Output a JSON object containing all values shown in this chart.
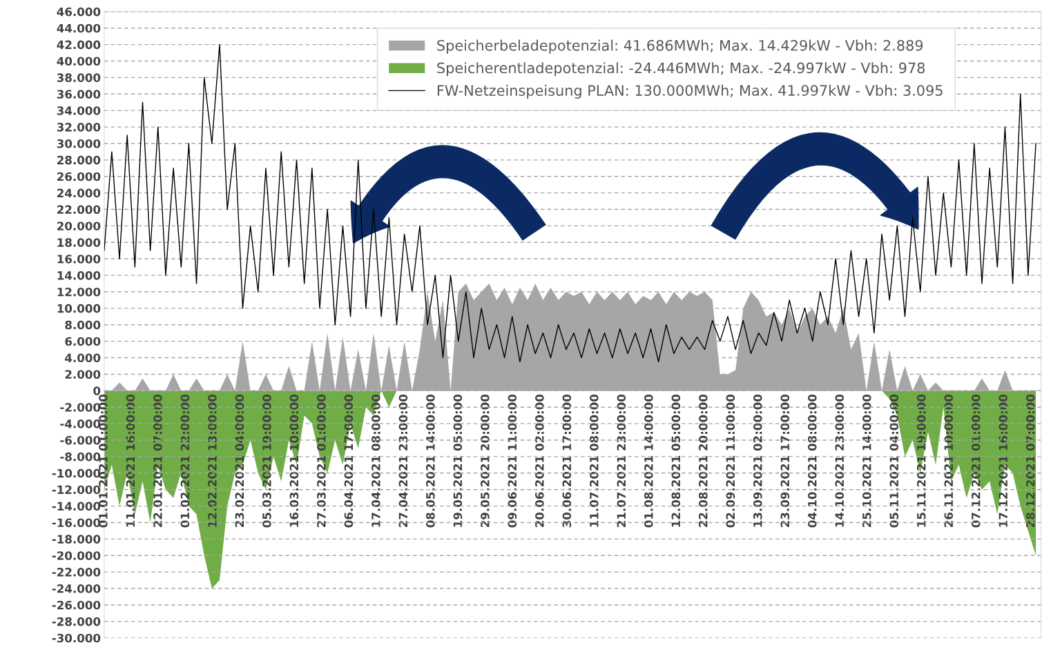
{
  "chart_data": {
    "type": "area",
    "x": [
      "2021-01-01T01:00",
      "2021-01-04",
      "2021-01-07",
      "2021-01-10",
      "2021-01-13",
      "2021-01-16",
      "2021-01-19",
      "2021-01-22",
      "2021-01-25",
      "2021-01-28",
      "2021-01-31",
      "2021-02-03",
      "2021-02-06",
      "2021-02-09",
      "2021-02-12",
      "2021-02-15",
      "2021-02-18",
      "2021-02-21",
      "2021-02-24",
      "2021-02-27",
      "2021-03-02",
      "2021-03-05",
      "2021-03-08",
      "2021-03-11",
      "2021-03-14",
      "2021-03-17",
      "2021-03-20",
      "2021-03-23",
      "2021-03-26",
      "2021-03-29",
      "2021-04-01",
      "2021-04-04",
      "2021-04-07",
      "2021-04-10",
      "2021-04-13",
      "2021-04-16",
      "2021-04-19",
      "2021-04-22",
      "2021-04-25",
      "2021-04-28",
      "2021-05-01",
      "2021-05-04",
      "2021-05-07",
      "2021-05-10",
      "2021-05-13",
      "2021-05-16",
      "2021-05-19",
      "2021-05-22",
      "2021-05-25",
      "2021-05-28",
      "2021-05-31",
      "2021-06-03",
      "2021-06-06",
      "2021-06-09",
      "2021-06-12",
      "2021-06-15",
      "2021-06-18",
      "2021-06-21",
      "2021-06-24",
      "2021-06-27",
      "2021-06-30",
      "2021-07-03",
      "2021-07-06",
      "2021-07-09",
      "2021-07-12",
      "2021-07-15",
      "2021-07-18",
      "2021-07-21",
      "2021-07-24",
      "2021-07-27",
      "2021-07-30",
      "2021-08-02",
      "2021-08-05",
      "2021-08-08",
      "2021-08-11",
      "2021-08-14",
      "2021-08-17",
      "2021-08-20",
      "2021-08-23",
      "2021-08-26",
      "2021-08-29",
      "2021-09-01",
      "2021-09-04",
      "2021-09-07",
      "2021-09-10",
      "2021-09-13",
      "2021-09-16",
      "2021-09-19",
      "2021-09-22",
      "2021-09-25",
      "2021-09-28",
      "2021-10-01",
      "2021-10-04",
      "2021-10-07",
      "2021-10-10",
      "2021-10-13",
      "2021-10-16",
      "2021-10-19",
      "2021-10-22",
      "2021-10-25",
      "2021-10-28",
      "2021-10-31",
      "2021-11-03",
      "2021-11-06",
      "2021-11-09",
      "2021-11-12",
      "2021-11-15",
      "2021-11-18",
      "2021-11-21",
      "2021-11-24",
      "2021-11-27",
      "2021-11-30",
      "2021-12-03",
      "2021-12-06",
      "2021-12-09",
      "2021-12-12",
      "2021-12-15",
      "2021-12-18",
      "2021-12-21",
      "2021-12-24",
      "2021-12-27",
      "2021-12-30"
    ],
    "series": [
      {
        "name": "Speicherbeladepotenzial: 41.686MWh; Max. 14.429kW - Vbh: 2.889",
        "color": "#a6a6a6",
        "values": [
          0,
          0,
          1000,
          0,
          0,
          1500,
          0,
          0,
          0,
          2000,
          0,
          0,
          1500,
          0,
          0,
          0,
          2000,
          0,
          6000,
          0,
          0,
          2000,
          0,
          0,
          3000,
          0,
          0,
          6000,
          0,
          7000,
          0,
          6500,
          0,
          5000,
          0,
          7000,
          0,
          5500,
          0,
          6000,
          0,
          5000,
          12000,
          6000,
          11000,
          0,
          12000,
          13000,
          11000,
          12000,
          13000,
          11000,
          12500,
          10500,
          12500,
          11000,
          13000,
          11000,
          12500,
          11000,
          12000,
          11500,
          12000,
          10500,
          12000,
          11000,
          12000,
          11000,
          12000,
          10500,
          11500,
          11000,
          12000,
          10500,
          12000,
          11000,
          12000,
          11500,
          12000,
          11000,
          2000,
          2000,
          2500,
          10000,
          12000,
          11000,
          9000,
          9500,
          8000,
          10000,
          7000,
          9000,
          10000,
          8000,
          9000,
          7000,
          10000,
          5000,
          7000,
          0,
          6000,
          0,
          5000,
          0,
          3000,
          0,
          2000,
          0,
          1000,
          0,
          0,
          0,
          0,
          0,
          1500,
          0,
          0,
          2500,
          0,
          0,
          0,
          0
        ]
      },
      {
        "name": "Speicherentladepotenzial: -24.446MWh; Max. -24.997kW - Vbh: 978",
        "color": "#70ad47",
        "values": [
          -12000,
          -9000,
          -14000,
          -10000,
          -15000,
          -11000,
          -16000,
          -9000,
          -12000,
          -13000,
          -10000,
          -14000,
          -15000,
          -20000,
          -24000,
          -23000,
          -14000,
          -10000,
          -9000,
          -6000,
          -10000,
          -12000,
          -8000,
          -11000,
          -6000,
          -9000,
          -3000,
          -4000,
          -8000,
          -10000,
          -6000,
          -9000,
          -4000,
          -7000,
          -2000,
          -3000,
          0,
          -2000,
          0,
          0,
          0,
          0,
          0,
          0,
          0,
          0,
          0,
          0,
          0,
          0,
          0,
          0,
          0,
          0,
          0,
          0,
          0,
          0,
          0,
          0,
          0,
          0,
          0,
          0,
          0,
          0,
          0,
          0,
          0,
          0,
          0,
          0,
          0,
          0,
          0,
          0,
          0,
          0,
          0,
          0,
          0,
          0,
          0,
          0,
          0,
          0,
          0,
          0,
          0,
          0,
          0,
          0,
          0,
          0,
          0,
          0,
          0,
          0,
          0,
          0,
          0,
          0,
          -1000,
          -3000,
          -8000,
          -6000,
          -10000,
          -5000,
          -9000,
          -2000,
          -11000,
          -9000,
          -13000,
          -10000,
          -12000,
          -11000,
          -15000,
          -9000,
          -10000,
          -14000,
          -17000,
          -20000
        ]
      },
      {
        "name": "FW-Netzeinspeisung PLAN: 130.000MWh; Max. 41.997kW - Vbh: 3.095",
        "type": "line",
        "color": "#000000",
        "values": [
          17000,
          29000,
          16000,
          31000,
          15000,
          35000,
          17000,
          32000,
          14000,
          27000,
          15000,
          30000,
          13000,
          38000,
          30000,
          42000,
          22000,
          30000,
          10000,
          20000,
          12000,
          27000,
          14000,
          29000,
          15000,
          28000,
          13000,
          27000,
          10000,
          22000,
          8000,
          20000,
          9000,
          28000,
          10000,
          22000,
          9000,
          21000,
          8000,
          19000,
          12000,
          20000,
          8000,
          14000,
          4000,
          14000,
          6000,
          12000,
          4000,
          10000,
          5000,
          8000,
          4000,
          9000,
          3500,
          8000,
          4500,
          7000,
          4000,
          8000,
          5000,
          7000,
          4000,
          7500,
          4500,
          7000,
          4000,
          7500,
          4500,
          7000,
          4000,
          7500,
          3500,
          8000,
          4500,
          6500,
          5000,
          6500,
          5000,
          8500,
          6000,
          9000,
          5000,
          8500,
          4500,
          7000,
          5500,
          9500,
          6000,
          11000,
          7000,
          10000,
          6000,
          12000,
          8000,
          16000,
          8000,
          17000,
          9000,
          16000,
          7000,
          19000,
          11000,
          20000,
          9000,
          21000,
          12000,
          26000,
          14000,
          24000,
          15000,
          28000,
          14000,
          30000,
          13000,
          27000,
          15000,
          32000,
          13000,
          36000,
          14000,
          30000
        ]
      }
    ],
    "xlim": [
      "2021-01-01T01:00",
      "2022-01-01T00:00"
    ],
    "xticks": [
      {
        "value": "2021-01-01T01:00",
        "label": "01.01.2021 01:00:00"
      },
      {
        "value": "2021-01-11T16:00",
        "label": "11.01.2021 16:00:00"
      },
      {
        "value": "2021-01-22T07:00",
        "label": "22.01.2021 07:00:00"
      },
      {
        "value": "2021-02-01T22:00",
        "label": "01.02.2021 22:00:00"
      },
      {
        "value": "2021-02-12T13:00",
        "label": "12.02.2021 13:00:00"
      },
      {
        "value": "2021-02-23T04:00",
        "label": "23.02.2021 04:00:00"
      },
      {
        "value": "2021-03-05T19:00",
        "label": "05.03.2021 19:00:00"
      },
      {
        "value": "2021-03-16T10:00",
        "label": "16.03.2021 10:00:00"
      },
      {
        "value": "2021-03-27T01:00",
        "label": "27.03.2021 01:00:00"
      },
      {
        "value": "2021-04-06T16:00",
        "label": "06.04.2021 17:00:00"
      },
      {
        "value": "2021-04-17T07:00",
        "label": "17.04.2021 08:00:00"
      },
      {
        "value": "2021-04-27T22:00",
        "label": "27.04.2021 23:00:00"
      },
      {
        "value": "2021-05-08T13:00",
        "label": "08.05.2021 14:00:00"
      },
      {
        "value": "2021-05-19T04:00",
        "label": "19.05.2021 05:00:00"
      },
      {
        "value": "2021-05-29T19:00",
        "label": "29.05.2021 20:00:00"
      },
      {
        "value": "2021-06-09T10:00",
        "label": "09.06.2021 11:00:00"
      },
      {
        "value": "2021-06-20T01:00",
        "label": "20.06.2021 02:00:00"
      },
      {
        "value": "2021-06-30T16:00",
        "label": "30.06.2021 17:00:00"
      },
      {
        "value": "2021-07-11T07:00",
        "label": "11.07.2021 08:00:00"
      },
      {
        "value": "2021-07-21T22:00",
        "label": "21.07.2021 23:00:00"
      },
      {
        "value": "2021-08-01T13:00",
        "label": "01.08.2021 14:00:00"
      },
      {
        "value": "2021-08-12T04:00",
        "label": "12.08.2021 05:00:00"
      },
      {
        "value": "2021-08-22T19:00",
        "label": "22.08.2021 20:00:00"
      },
      {
        "value": "2021-09-02T10:00",
        "label": "02.09.2021 11:00:00"
      },
      {
        "value": "2021-09-13T01:00",
        "label": "13.09.2021 02:00:00"
      },
      {
        "value": "2021-09-23T16:00",
        "label": "23.09.2021 17:00:00"
      },
      {
        "value": "2021-10-04T07:00",
        "label": "04.10.2021 08:00:00"
      },
      {
        "value": "2021-10-14T22:00",
        "label": "14.10.2021 23:00:00"
      },
      {
        "value": "2021-10-25T13:00",
        "label": "25.10.2021 14:00:00"
      },
      {
        "value": "2021-11-05T04:00",
        "label": "05.11.2021 04:00:00"
      },
      {
        "value": "2021-11-15T19:00",
        "label": "15.11.2021 19:00:00"
      },
      {
        "value": "2021-11-26T10:00",
        "label": "26.11.2021 10:00:00"
      },
      {
        "value": "2021-12-07T01:00",
        "label": "07.12.2021 01:00:00"
      },
      {
        "value": "2021-12-17T16:00",
        "label": "17.12.2021 16:00:00"
      },
      {
        "value": "2021-12-28T07:00",
        "label": "28.12.2021 07:00:00"
      }
    ],
    "ylim": [
      -30000,
      46000
    ],
    "yticks": [
      {
        "value": -30000,
        "label": "-30.000"
      },
      {
        "value": -28000,
        "label": "-28.000"
      },
      {
        "value": -26000,
        "label": "-26.000"
      },
      {
        "value": -24000,
        "label": "-24.000"
      },
      {
        "value": -22000,
        "label": "-22.000"
      },
      {
        "value": -20000,
        "label": "-20.000"
      },
      {
        "value": -18000,
        "label": "-18.000"
      },
      {
        "value": -16000,
        "label": "-16.000"
      },
      {
        "value": -14000,
        "label": "-14.000"
      },
      {
        "value": -12000,
        "label": "-12.000"
      },
      {
        "value": -10000,
        "label": "-10.000"
      },
      {
        "value": -8000,
        "label": "-8.000"
      },
      {
        "value": -6000,
        "label": "-6.000"
      },
      {
        "value": -4000,
        "label": "-4.000"
      },
      {
        "value": -2000,
        "label": "-2.000"
      },
      0,
      {
        "value": 2000,
        "label": "2.000"
      },
      {
        "value": 4000,
        "label": "4.000"
      },
      {
        "value": 6000,
        "label": "6.000"
      },
      {
        "value": 8000,
        "label": "8.000"
      },
      {
        "value": 10000,
        "label": "10.000"
      },
      {
        "value": 12000,
        "label": "12.000"
      },
      {
        "value": 14000,
        "label": "14.000"
      },
      {
        "value": 16000,
        "label": "16.000"
      },
      {
        "value": 18000,
        "label": "18.000"
      },
      {
        "value": 20000,
        "label": "20.000"
      },
      {
        "value": 22000,
        "label": "22.000"
      },
      {
        "value": 24000,
        "label": "24.000"
      },
      {
        "value": 26000,
        "label": "26.000"
      },
      {
        "value": 28000,
        "label": "28.000"
      },
      {
        "value": 30000,
        "label": "30.000"
      },
      {
        "value": 32000,
        "label": "32.000"
      },
      {
        "value": 34000,
        "label": "34.000"
      },
      {
        "value": 36000,
        "label": "36.000"
      },
      {
        "value": 38000,
        "label": "38.000"
      },
      {
        "value": 40000,
        "label": "40.000"
      },
      {
        "value": 42000,
        "label": "42.000"
      },
      {
        "value": 44000,
        "label": "44.000"
      },
      {
        "value": 46000,
        "label": "46.000"
      }
    ],
    "grid": "y",
    "legend": "top"
  }
}
